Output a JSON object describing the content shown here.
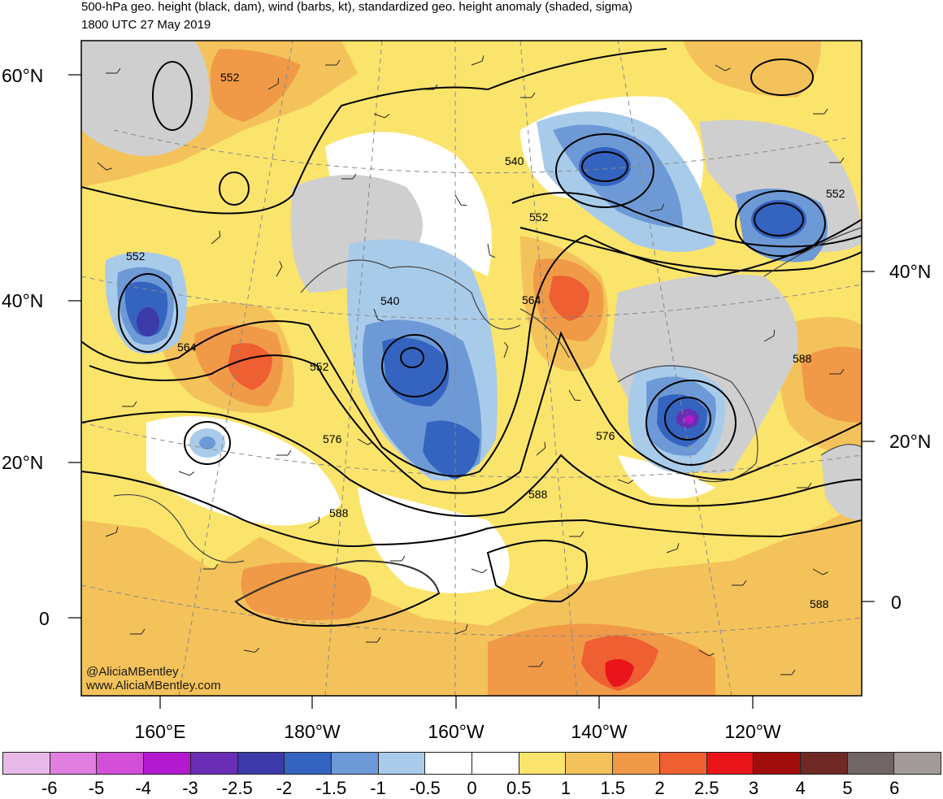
{
  "title_line1": "500-hPa geo. height (black, dam), wind (barbs, kt), standardized geo. height anomaly (shaded, sigma)",
  "title_line2": "1800 UTC 27 May 2019",
  "lat_labels_left": [
    "60°N",
    "40°N",
    "20°N",
    "0"
  ],
  "lat_labels_right": [
    "40°N",
    "20°N",
    "0"
  ],
  "lon_labels": [
    "160°E",
    "180°W",
    "160°W",
    "140°W",
    "120°W"
  ],
  "contour_labels": [
    "552",
    "552",
    "540",
    "552",
    "552",
    "564",
    "540",
    "552",
    "564",
    "576",
    "588",
    "576",
    "588",
    "588",
    "588"
  ],
  "credit_handle": "@AliciaMBentley",
  "credit_site": "www.AliciaMBentley.com",
  "colorbar": {
    "labels": [
      "-6",
      "-5",
      "-4",
      "-3",
      "-2.5",
      "-2",
      "-1.5",
      "-1",
      "-0.5",
      "0",
      "0.5",
      "1",
      "1.5",
      "2",
      "2.5",
      "3",
      "4",
      "5",
      "6"
    ],
    "colors": [
      "#e8b9e8",
      "#e07fe0",
      "#d34fd8",
      "#b31ad0",
      "#6a2eb4",
      "#3c3aa8",
      "#3464c0",
      "#6d9ad6",
      "#a9cbea",
      "#ffffff",
      "#ffffff",
      "#fbe46b",
      "#f4c25a",
      "#f09a48",
      "#ee5f32",
      "#e8141a",
      "#a00d0d",
      "#6f2a26",
      "#716565",
      "#a39a9a"
    ]
  }
}
